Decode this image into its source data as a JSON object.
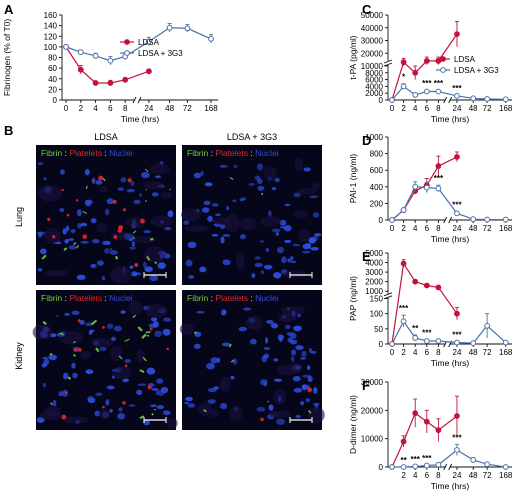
{
  "colors": {
    "ldsa": "#c0143c",
    "g3": "#4a73a8",
    "fibrin": "#6ed23c",
    "platelets": "#e02828",
    "nuclei": "#2e50e6",
    "axis": "#111111"
  },
  "chart_data": [
    {
      "id": "A",
      "panel_label": "A",
      "type": "line",
      "ylabel": "Fibrinogen (% of T0)",
      "xlabel": "Time (hrs)",
      "yticks": [
        0,
        20,
        40,
        60,
        80,
        100,
        120,
        140,
        160
      ],
      "xticks": [
        "0",
        "2",
        "4",
        "6",
        "8",
        "24",
        "48",
        "72",
        "168"
      ],
      "ylim": [
        0,
        160
      ],
      "legend": [
        "LDSA",
        "LDSA + 3G3"
      ],
      "legend_position": "center-right",
      "series": [
        {
          "name": "LDSA",
          "color": "#c0143c",
          "filled": true,
          "x": [
            "0",
            "2",
            "4",
            "6",
            "8",
            "24"
          ],
          "values": [
            100,
            57,
            32,
            32,
            38,
            54
          ],
          "errors": [
            0,
            8,
            4,
            5,
            4,
            4
          ]
        },
        {
          "name": "LDSA + 3G3",
          "color": "#4a73a8",
          "filled": false,
          "x": [
            "0",
            "2",
            "4",
            "6",
            "8",
            "24",
            "48",
            "72",
            "168"
          ],
          "values": [
            100,
            90,
            83,
            74,
            82,
            110,
            136,
            135,
            115
          ],
          "errors": [
            0,
            4,
            5,
            8,
            6,
            8,
            8,
            7,
            8
          ]
        }
      ],
      "annotations": []
    },
    {
      "id": "C",
      "panel_label": "C",
      "type": "line",
      "ylabel": "t-PA (pg/ml)",
      "xlabel": "Time (hrs)",
      "yticks": [
        0,
        2000,
        4000,
        6000,
        8000,
        10000,
        20000,
        30000,
        40000,
        50000
      ],
      "xticks": [
        "0",
        "2",
        "4",
        "6",
        "8",
        "24",
        "48",
        "72",
        "168"
      ],
      "legend": [
        "LDSA",
        "LDSA + 3G3"
      ],
      "legend_position": "center-right",
      "series": [
        {
          "name": "LDSA",
          "color": "#c0143c",
          "filled": true,
          "x": [
            "0",
            "2",
            "4",
            "6",
            "8",
            "24"
          ],
          "values": [
            0,
            13000,
            8000,
            14000,
            14000,
            35000
          ],
          "errors": [
            0,
            3000,
            2000,
            3000,
            3000,
            10000
          ]
        },
        {
          "name": "LDSA + 3G3",
          "color": "#4a73a8",
          "filled": false,
          "x": [
            "0",
            "2",
            "4",
            "6",
            "8",
            "24",
            "48",
            "72",
            "168"
          ],
          "values": [
            0,
            4000,
            1500,
            2500,
            2500,
            1200,
            500,
            300,
            200
          ],
          "errors": [
            0,
            800,
            300,
            400,
            400,
            300,
            100,
            50,
            50
          ]
        }
      ],
      "annotations": [
        {
          "x": "2",
          "text": "*"
        },
        {
          "x": "6",
          "text": "***"
        },
        {
          "x": "8",
          "text": "***"
        },
        {
          "x": "24",
          "text": "***"
        }
      ]
    },
    {
      "id": "D",
      "panel_label": "D",
      "type": "line",
      "ylabel": "PAI-1 (ng/ml)",
      "xlabel": "Time (hrs)",
      "yticks": [
        0,
        200,
        400,
        600,
        800,
        1000
      ],
      "xticks": [
        "0",
        "2",
        "4",
        "6",
        "8",
        "24",
        "48",
        "72",
        "168"
      ],
      "ylim": [
        0,
        1000
      ],
      "series": [
        {
          "name": "LDSA",
          "color": "#c0143c",
          "filled": true,
          "x": [
            "0",
            "2",
            "4",
            "6",
            "8",
            "24"
          ],
          "values": [
            0,
            120,
            350,
            420,
            650,
            760
          ],
          "errors": [
            0,
            20,
            40,
            80,
            120,
            60
          ]
        },
        {
          "name": "LDSA + 3G3",
          "color": "#4a73a8",
          "filled": false,
          "x": [
            "0",
            "2",
            "4",
            "6",
            "8",
            "24",
            "48",
            "72",
            "168"
          ],
          "values": [
            0,
            120,
            400,
            390,
            380,
            80,
            10,
            5,
            5
          ],
          "errors": [
            0,
            20,
            60,
            60,
            40,
            20,
            5,
            0,
            0
          ]
        }
      ],
      "annotations": [
        {
          "x": "8",
          "text": "***"
        },
        {
          "x": "24",
          "text": "***"
        }
      ]
    },
    {
      "id": "E",
      "panel_label": "E",
      "type": "line",
      "ylabel": "PAP (ng/ml)",
      "xlabel": "Time (hrs)",
      "yticks": [
        0,
        50,
        100,
        150,
        1000,
        2000,
        3000,
        4000,
        5000
      ],
      "xticks": [
        "0",
        "2",
        "4",
        "6",
        "8",
        "24",
        "48",
        "72",
        "168"
      ],
      "series": [
        {
          "name": "LDSA",
          "color": "#c0143c",
          "filled": true,
          "x": [
            "0",
            "2",
            "4",
            "6",
            "8",
            "24"
          ],
          "values": [
            0,
            3900,
            2000,
            1600,
            1400,
            100
          ],
          "errors": [
            0,
            400,
            200,
            150,
            150,
            20
          ]
        },
        {
          "name": "LDSA + 3G3",
          "color": "#4a73a8",
          "filled": false,
          "x": [
            "0",
            "2",
            "4",
            "6",
            "8",
            "24",
            "48",
            "72",
            "168"
          ],
          "values": [
            0,
            75,
            20,
            10,
            10,
            5,
            3,
            60,
            5
          ],
          "errors": [
            0,
            20,
            10,
            5,
            5,
            3,
            2,
            40,
            3
          ]
        }
      ],
      "annotations": [
        {
          "x": "2",
          "text": "***"
        },
        {
          "x": "4",
          "text": "**"
        },
        {
          "x": "6",
          "text": "***"
        },
        {
          "x": "24",
          "text": "***"
        }
      ]
    },
    {
      "id": "F",
      "panel_label": "F",
      "type": "line",
      "ylabel": "D-dimer (ng/ml)",
      "xlabel": "Time (hrs)",
      "yticks": [
        0,
        10000,
        20000,
        30000
      ],
      "xticks": [
        "2",
        "4",
        "6",
        "8",
        "24",
        "48",
        "72",
        "168"
      ],
      "ylim": [
        0,
        30000
      ],
      "series": [
        {
          "name": "LDSA",
          "color": "#c0143c",
          "filled": true,
          "x": [
            "0",
            "2",
            "4",
            "6",
            "8",
            "24"
          ],
          "values": [
            0,
            9000,
            19000,
            16000,
            13000,
            18000
          ],
          "errors": [
            0,
            2000,
            5000,
            4000,
            4000,
            7000
          ]
        },
        {
          "name": "LDSA + 3G3",
          "color": "#4a73a8",
          "filled": false,
          "x": [
            "0",
            "2",
            "4",
            "6",
            "8",
            "24",
            "48",
            "72",
            "168"
          ],
          "values": [
            0,
            0,
            200,
            500,
            800,
            6000,
            2500,
            1000,
            0
          ],
          "errors": [
            0,
            0,
            100,
            200,
            300,
            2000,
            800,
            300,
            0
          ]
        }
      ],
      "annotations": [
        {
          "x": "2",
          "text": "**"
        },
        {
          "x": "4",
          "text": "***"
        },
        {
          "x": "6",
          "text": "***"
        },
        {
          "x": "24",
          "text": "***"
        }
      ]
    }
  ],
  "micrographs": {
    "panel_label": "B",
    "col_titles": [
      "LDSA",
      "LDSA + 3G3"
    ],
    "row_labels": [
      "Lung",
      "Kidney"
    ],
    "stain_legend": {
      "fibrin": "Fibrin",
      "sep1": ":",
      "platelets": "Platelets",
      "sep2": ":",
      "nuclei": "Nuclei"
    }
  }
}
